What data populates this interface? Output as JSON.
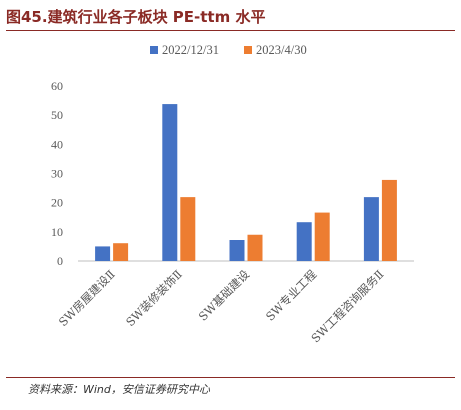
{
  "header": {
    "title": "图45.建筑行业各子板块 PE-ttm 水平"
  },
  "footer": {
    "source": "资料来源：Wind，安信证券研究中心"
  },
  "colors": {
    "series1": "#4472C4",
    "series2": "#ED7D31",
    "accent": "#8a2a25"
  },
  "chart_data": {
    "type": "bar",
    "title": "",
    "xlabel": "",
    "ylabel": "",
    "categories": [
      "SW房屋建设Ⅱ",
      "SW装修装饰Ⅱ",
      "SW基础建设",
      "SW专业工程",
      "SW工程咨询服务Ⅱ"
    ],
    "series": [
      {
        "name": "2022/12/31",
        "values": [
          5.0,
          53.8,
          7.2,
          13.3,
          21.9
        ]
      },
      {
        "name": "2023/4/30",
        "values": [
          6.1,
          21.9,
          9.0,
          16.6,
          27.8
        ]
      }
    ],
    "ylim": [
      0,
      60
    ],
    "yticks": [
      0,
      10,
      20,
      30,
      40,
      50,
      60
    ],
    "grid": false,
    "legend_position": "top-center"
  }
}
